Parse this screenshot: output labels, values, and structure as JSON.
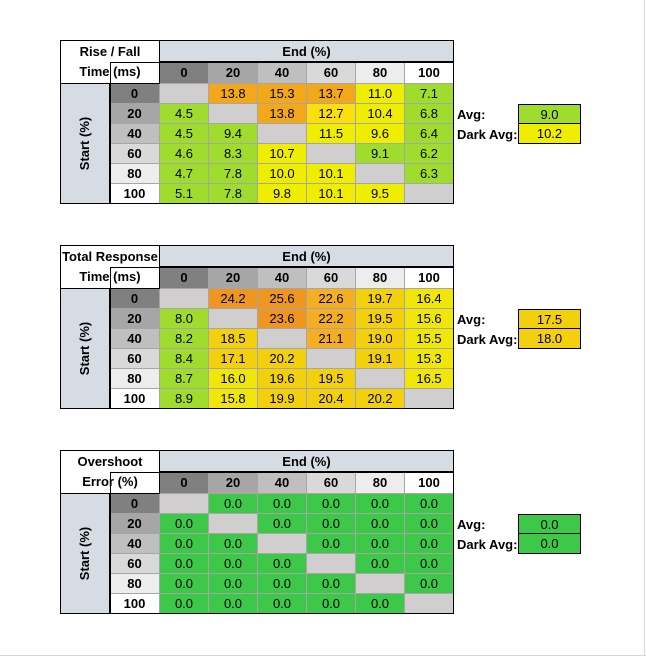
{
  "colors": {
    "header_0": "#808080",
    "header_20": "#a6a6a6",
    "header_40": "#bfbfbf",
    "header_60": "#d9d9d9",
    "header_80": "#ededed",
    "header_100": "#ffffff",
    "axis_header_bg": "#d6dce4",
    "diagonal_gray": "#d0cece",
    "overshoot_green": "#3ec84a"
  },
  "chart_data": [
    {
      "type": "heatmap",
      "title_line1": "Rise / Fall",
      "title_line2": "Time (ms)",
      "xlabel": "End (%)",
      "ylabel": "Start (%)",
      "columns": [
        "0",
        "20",
        "40",
        "60",
        "80",
        "100"
      ],
      "rows": [
        "0",
        "20",
        "40",
        "60",
        "80",
        "100"
      ],
      "values": [
        [
          "",
          "13.8",
          "15.3",
          "13.7",
          "11.0",
          "7.1"
        ],
        [
          "4.5",
          "",
          "13.8",
          "12.7",
          "10.4",
          "6.8"
        ],
        [
          "4.5",
          "9.4",
          "",
          "11.5",
          "9.6",
          "6.4"
        ],
        [
          "4.6",
          "8.3",
          "10.7",
          "",
          "9.1",
          "6.2"
        ],
        [
          "4.7",
          "7.8",
          "10.0",
          "10.1",
          "",
          "6.3"
        ],
        [
          "5.1",
          "7.8",
          "9.8",
          "10.1",
          "9.5",
          ""
        ]
      ],
      "avg_label": "Avg:",
      "avg_value": "9.0",
      "dark_avg_label": "Dark Avg:",
      "dark_avg_value": "10.2"
    },
    {
      "type": "heatmap",
      "title_line1": "Total Response",
      "title_line2": "Time (ms)",
      "xlabel": "End (%)",
      "ylabel": "Start (%)",
      "columns": [
        "0",
        "20",
        "40",
        "60",
        "80",
        "100"
      ],
      "rows": [
        "0",
        "20",
        "40",
        "60",
        "80",
        "100"
      ],
      "values": [
        [
          "",
          "24.2",
          "25.6",
          "22.6",
          "19.7",
          "16.4"
        ],
        [
          "8.0",
          "",
          "23.6",
          "22.2",
          "19.5",
          "15.6"
        ],
        [
          "8.2",
          "18.5",
          "",
          "21.1",
          "19.0",
          "15.5"
        ],
        [
          "8.4",
          "17.1",
          "20.2",
          "",
          "19.1",
          "15.3"
        ],
        [
          "8.7",
          "16.0",
          "19.6",
          "19.5",
          "",
          "16.5"
        ],
        [
          "8.9",
          "15.8",
          "19.9",
          "20.4",
          "20.2",
          ""
        ]
      ],
      "avg_label": "Avg:",
      "avg_value": "17.5",
      "dark_avg_label": "Dark Avg:",
      "dark_avg_value": "18.0"
    },
    {
      "type": "heatmap",
      "title_line1": "Overshoot",
      "title_line2": "Error (%)",
      "xlabel": "End (%)",
      "ylabel": "Start (%)",
      "columns": [
        "0",
        "20",
        "40",
        "60",
        "80",
        "100"
      ],
      "rows": [
        "0",
        "20",
        "40",
        "60",
        "80",
        "100"
      ],
      "values": [
        [
          "",
          "0.0",
          "0.0",
          "0.0",
          "0.0",
          "0.0"
        ],
        [
          "0.0",
          "",
          "0.0",
          "0.0",
          "0.0",
          "0.0"
        ],
        [
          "0.0",
          "0.0",
          "",
          "0.0",
          "0.0",
          "0.0"
        ],
        [
          "0.0",
          "0.0",
          "0.0",
          "",
          "0.0",
          "0.0"
        ],
        [
          "0.0",
          "0.0",
          "0.0",
          "0.0",
          "",
          "0.0"
        ],
        [
          "0.0",
          "0.0",
          "0.0",
          "0.0",
          "0.0",
          ""
        ]
      ],
      "avg_label": "Avg:",
      "avg_value": "0.0",
      "dark_avg_label": "Dark Avg:",
      "dark_avg_value": "0.0"
    }
  ]
}
